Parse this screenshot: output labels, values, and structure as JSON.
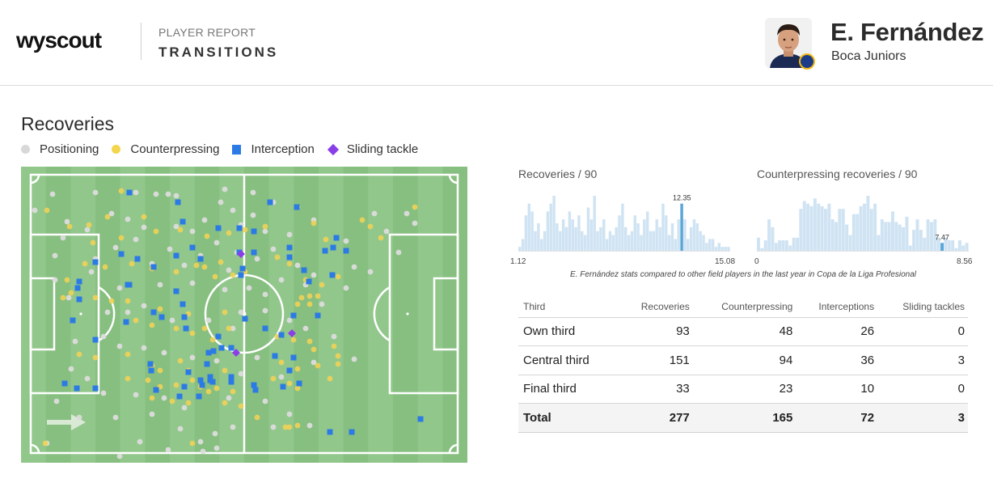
{
  "header": {
    "logo": "wyscout",
    "report_label": "PLAYER REPORT",
    "report_title": "TRANSITIONS",
    "player_name": "E. Fernández",
    "team": "Boca Juniors"
  },
  "section": {
    "title": "Recoveries",
    "legend": [
      {
        "label": "Positioning",
        "color": "#d8d8d8",
        "shape": "circle"
      },
      {
        "label": "Counterpressing",
        "color": "#f3d54e",
        "shape": "circle"
      },
      {
        "label": "Interception",
        "color": "#2c7be5",
        "shape": "square"
      },
      {
        "label": "Sliding tackle",
        "color": "#8a3ee8",
        "shape": "diamond"
      }
    ]
  },
  "colors": {
    "pitch_light": "#92c78c",
    "pitch_dark": "#87bf80",
    "histogram_bar": "#cfe3f3",
    "histogram_highlight": "#5aa6d6"
  },
  "histograms": {
    "recoveries": {
      "title": "Recoveries / 90",
      "min": "1.12",
      "max": "15.08",
      "player_value": "12.35",
      "bars": [
        1,
        3,
        9,
        12,
        10,
        5,
        7,
        3,
        5,
        10,
        12,
        14,
        7,
        5,
        8,
        6,
        10,
        8,
        6,
        9,
        5,
        4,
        11,
        8,
        14,
        5,
        6,
        8,
        3,
        5,
        4,
        6,
        9,
        12,
        6,
        4,
        5,
        9,
        7,
        4,
        8,
        10,
        5,
        5,
        8,
        6,
        12,
        9,
        4,
        7,
        3,
        8,
        12,
        8,
        3,
        6,
        8,
        7,
        5,
        4,
        2,
        3,
        3,
        1,
        2,
        1,
        1,
        1
      ],
      "highlight_index": 52
    },
    "counterpressing": {
      "title": "Counterpressing recoveries / 90",
      "min": "0",
      "max": "8.56",
      "player_value": "7.47",
      "bars": [
        5,
        1,
        4,
        12,
        9,
        3,
        4,
        4,
        4,
        2,
        5,
        5,
        16,
        19,
        18,
        17,
        20,
        18,
        17,
        16,
        18,
        12,
        11,
        16,
        16,
        10,
        6,
        14,
        14,
        17,
        18,
        21,
        16,
        18,
        6,
        12,
        11,
        11,
        15,
        11,
        10,
        9,
        13,
        2,
        8,
        12,
        8,
        5,
        12,
        11,
        12,
        5,
        3,
        5,
        4,
        4,
        1,
        4,
        2,
        3
      ],
      "highlight_index": 52
    },
    "note": "E. Fernández stats compared to other field players in the last year in Copa de la Liga Profesional"
  },
  "pitch_events": {
    "positioning": [
      [
        27,
        24
      ],
      [
        80,
        22
      ],
      [
        130,
        22
      ],
      [
        155,
        24
      ],
      [
        170,
        24
      ],
      [
        180,
        26
      ],
      [
        240,
        18
      ],
      [
        235,
        34
      ],
      [
        275,
        22
      ],
      [
        300,
        34
      ],
      [
        5,
        44
      ],
      [
        45,
        58
      ],
      [
        100,
        48
      ],
      [
        120,
        55
      ],
      [
        140,
        65
      ],
      [
        180,
        64
      ],
      [
        200,
        70
      ],
      [
        215,
        56
      ],
      [
        250,
        44
      ],
      [
        260,
        62
      ],
      [
        275,
        50
      ],
      [
        290,
        70
      ],
      [
        320,
        74
      ],
      [
        350,
        56
      ],
      [
        390,
        82
      ],
      [
        425,
        48
      ],
      [
        465,
        48
      ],
      [
        475,
        60
      ],
      [
        40,
        78
      ],
      [
        70,
        68
      ],
      [
        30,
        100
      ],
      [
        80,
        104
      ],
      [
        105,
        90
      ],
      [
        130,
        80
      ],
      [
        150,
        110
      ],
      [
        172,
        92
      ],
      [
        190,
        112
      ],
      [
        210,
        100
      ],
      [
        230,
        84
      ],
      [
        255,
        96
      ],
      [
        280,
        104
      ],
      [
        300,
        92
      ],
      [
        330,
        112
      ],
      [
        350,
        124
      ],
      [
        400,
        114
      ],
      [
        440,
        70
      ],
      [
        455,
        96
      ],
      [
        30,
        130
      ],
      [
        75,
        120
      ],
      [
        110,
        140
      ],
      [
        160,
        136
      ],
      [
        200,
        134
      ],
      [
        240,
        142
      ],
      [
        245,
        118
      ],
      [
        270,
        140
      ],
      [
        290,
        148
      ],
      [
        310,
        130
      ],
      [
        340,
        136
      ],
      [
        360,
        160
      ],
      [
        390,
        140
      ],
      [
        420,
        120
      ],
      [
        47,
        152
      ],
      [
        95,
        170
      ],
      [
        120,
        170
      ],
      [
        140,
        162
      ],
      [
        175,
        180
      ],
      [
        220,
        180
      ],
      [
        250,
        190
      ],
      [
        260,
        170
      ],
      [
        290,
        168
      ],
      [
        320,
        180
      ],
      [
        340,
        190
      ],
      [
        375,
        200
      ],
      [
        55,
        206
      ],
      [
        90,
        200
      ],
      [
        110,
        212
      ],
      [
        140,
        214
      ],
      [
        165,
        220
      ],
      [
        200,
        226
      ],
      [
        230,
        230
      ],
      [
        260,
        246
      ],
      [
        280,
        226
      ],
      [
        310,
        250
      ],
      [
        350,
        232
      ],
      [
        400,
        228
      ],
      [
        50,
        240
      ],
      [
        70,
        252
      ],
      [
        90,
        270
      ],
      [
        130,
        272
      ],
      [
        165,
        276
      ],
      [
        190,
        288
      ],
      [
        245,
        276
      ],
      [
        290,
        280
      ],
      [
        320,
        296
      ],
      [
        345,
        310
      ],
      [
        32,
        280
      ],
      [
        60,
        300
      ],
      [
        105,
        300
      ],
      [
        150,
        296
      ],
      [
        185,
        314
      ],
      [
        210,
        330
      ],
      [
        228,
        320
      ],
      [
        250,
        312
      ],
      [
        300,
        312
      ],
      [
        20,
        332
      ],
      [
        110,
        348
      ],
      [
        135,
        330
      ],
      [
        170,
        340
      ],
      [
        213,
        342
      ],
      [
        230,
        338
      ]
    ],
    "counterpressing": [
      [
        112,
        20
      ],
      [
        20,
        44
      ],
      [
        48,
        64
      ],
      [
        72,
        62
      ],
      [
        77,
        84
      ],
      [
        95,
        52
      ],
      [
        112,
        78
      ],
      [
        140,
        52
      ],
      [
        155,
        70
      ],
      [
        185,
        68
      ],
      [
        218,
        76
      ],
      [
        245,
        72
      ],
      [
        265,
        68
      ],
      [
        290,
        64
      ],
      [
        330,
        40
      ],
      [
        350,
        60
      ],
      [
        365,
        80
      ],
      [
        410,
        56
      ],
      [
        420,
        64
      ],
      [
        433,
        78
      ],
      [
        475,
        40
      ],
      [
        67,
        110
      ],
      [
        92,
        114
      ],
      [
        125,
        110
      ],
      [
        150,
        116
      ],
      [
        180,
        120
      ],
      [
        205,
        112
      ],
      [
        215,
        114
      ],
      [
        228,
        126
      ],
      [
        235,
        108
      ],
      [
        250,
        124
      ],
      [
        265,
        120
      ],
      [
        305,
        102
      ],
      [
        320,
        110
      ],
      [
        340,
        130
      ],
      [
        345,
        150
      ],
      [
        360,
        136
      ],
      [
        380,
        126
      ],
      [
        45,
        130
      ],
      [
        50,
        146
      ],
      [
        40,
        152
      ],
      [
        80,
        152
      ],
      [
        100,
        156
      ],
      [
        120,
        156
      ],
      [
        160,
        166
      ],
      [
        195,
        172
      ],
      [
        240,
        170
      ],
      [
        330,
        160
      ],
      [
        335,
        152
      ],
      [
        345,
        160
      ],
      [
        355,
        150
      ],
      [
        130,
        180
      ],
      [
        150,
        186
      ],
      [
        180,
        190
      ],
      [
        200,
        196
      ],
      [
        215,
        190
      ],
      [
        225,
        204
      ],
      [
        245,
        190
      ],
      [
        305,
        200
      ],
      [
        325,
        204
      ],
      [
        345,
        206
      ],
      [
        350,
        216
      ],
      [
        375,
        212
      ],
      [
        380,
        224
      ],
      [
        60,
        222
      ],
      [
        80,
        226
      ],
      [
        120,
        222
      ],
      [
        150,
        236
      ],
      [
        160,
        242
      ],
      [
        185,
        230
      ],
      [
        195,
        242
      ],
      [
        240,
        242
      ],
      [
        310,
        232
      ],
      [
        330,
        240
      ],
      [
        355,
        236
      ],
      [
        380,
        234
      ],
      [
        145,
        254
      ],
      [
        160,
        262
      ],
      [
        180,
        260
      ],
      [
        200,
        254
      ],
      [
        210,
        262
      ],
      [
        220,
        268
      ],
      [
        230,
        264
      ],
      [
        250,
        268
      ],
      [
        300,
        252
      ],
      [
        320,
        258
      ],
      [
        330,
        264
      ],
      [
        370,
        252
      ],
      [
        120,
        252
      ],
      [
        150,
        276
      ],
      [
        175,
        280
      ],
      [
        195,
        282
      ],
      [
        240,
        282
      ],
      [
        260,
        286
      ],
      [
        280,
        300
      ],
      [
        315,
        312
      ],
      [
        320,
        312
      ],
      [
        330,
        310
      ],
      [
        18,
        332
      ],
      [
        200,
        332
      ]
    ],
    "interception": [
      [
        122,
        22
      ],
      [
        182,
        34
      ],
      [
        296,
        34
      ],
      [
        329,
        40
      ],
      [
        188,
        58
      ],
      [
        378,
        78
      ],
      [
        374,
        90
      ],
      [
        232,
        66
      ],
      [
        258,
        66
      ],
      [
        276,
        70
      ],
      [
        112,
        98
      ],
      [
        180,
        100
      ],
      [
        210,
        104
      ],
      [
        200,
        90
      ],
      [
        258,
        96
      ],
      [
        276,
        96
      ],
      [
        320,
        90
      ],
      [
        320,
        102
      ],
      [
        364,
        94
      ],
      [
        390,
        94
      ],
      [
        80,
        108
      ],
      [
        132,
        104
      ],
      [
        152,
        114
      ],
      [
        262,
        116
      ],
      [
        338,
        118
      ],
      [
        344,
        132
      ],
      [
        373,
        124
      ],
      [
        60,
        132
      ],
      [
        120,
        136
      ],
      [
        260,
        124
      ],
      [
        180,
        144
      ],
      [
        58,
        140
      ],
      [
        60,
        154
      ],
      [
        122,
        136
      ],
      [
        188,
        160
      ],
      [
        152,
        170
      ],
      [
        162,
        176
      ],
      [
        190,
        176
      ],
      [
        265,
        178
      ],
      [
        325,
        174
      ],
      [
        355,
        174
      ],
      [
        52,
        180
      ],
      [
        118,
        182
      ],
      [
        192,
        190
      ],
      [
        290,
        190
      ],
      [
        310,
        198
      ],
      [
        80,
        204
      ],
      [
        232,
        200
      ],
      [
        236,
        214
      ],
      [
        226,
        218
      ],
      [
        220,
        220
      ],
      [
        248,
        214
      ],
      [
        302,
        224
      ],
      [
        325,
        226
      ],
      [
        148,
        234
      ],
      [
        149,
        242
      ],
      [
        218,
        234
      ],
      [
        222,
        250
      ],
      [
        222,
        254
      ],
      [
        210,
        254
      ],
      [
        195,
        244
      ],
      [
        320,
        242
      ],
      [
        225,
        256
      ],
      [
        212,
        260
      ],
      [
        248,
        250
      ],
      [
        248,
        256
      ],
      [
        278,
        266
      ],
      [
        312,
        262
      ],
      [
        332,
        258
      ],
      [
        42,
        258
      ],
      [
        57,
        264
      ],
      [
        80,
        264
      ],
      [
        155,
        266
      ],
      [
        190,
        262
      ],
      [
        208,
        274
      ],
      [
        184,
        274
      ],
      [
        276,
        260
      ],
      [
        482,
        302
      ],
      [
        370,
        318
      ],
      [
        397,
        318
      ]
    ],
    "sliding_tackle": [
      [
        260,
        98
      ],
      [
        323,
        196
      ],
      [
        254,
        220
      ]
    ]
  },
  "table": {
    "columns": [
      "Third",
      "Recoveries",
      "Counterpressing",
      "Interceptions",
      "Sliding tackles"
    ],
    "rows": [
      [
        "Own third",
        "93",
        "48",
        "26",
        "0"
      ],
      [
        "Central third",
        "151",
        "94",
        "36",
        "3"
      ],
      [
        "Final third",
        "33",
        "23",
        "10",
        "0"
      ]
    ],
    "total": [
      "Total",
      "277",
      "165",
      "72",
      "3"
    ]
  }
}
